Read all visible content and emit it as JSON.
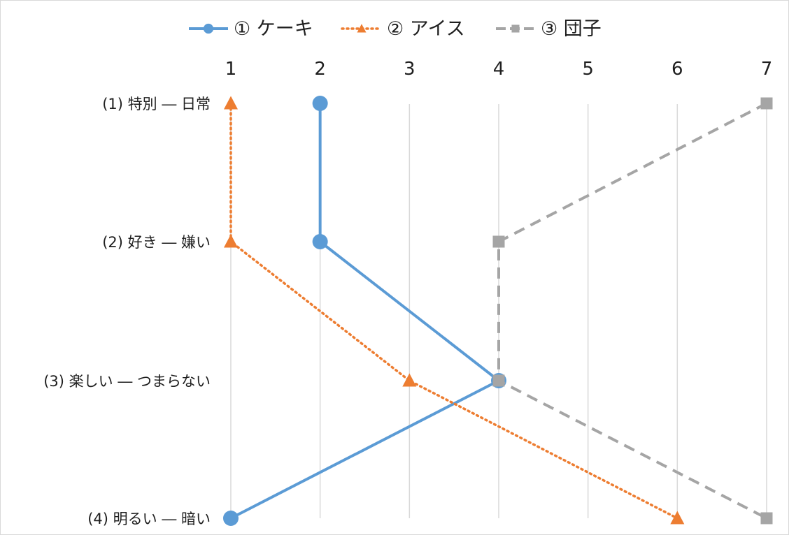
{
  "chart_data": {
    "type": "line",
    "title": "",
    "xlabel": "",
    "ylabel": "",
    "x_ticks": [
      1,
      2,
      3,
      4,
      5,
      6,
      7
    ],
    "xlim": [
      1,
      7
    ],
    "x_axis_position": "top",
    "grid": "vertical",
    "legend": "top",
    "categories": [
      "(1) 特別 ― 日常",
      "(2) 好き ― 嫌い",
      "(3) 楽しい ― つまらない",
      "(4) 明るい ― 暗い"
    ],
    "series": [
      {
        "name": "① ケーキ",
        "values": [
          2,
          2,
          4,
          1
        ],
        "color": "#5b9bd5",
        "line": "solid",
        "marker": "circle"
      },
      {
        "name": "② アイス",
        "values": [
          1,
          1,
          3,
          6
        ],
        "color": "#ed7d31",
        "line": "dotted",
        "marker": "triangle"
      },
      {
        "name": "③ 団子",
        "values": [
          7,
          4,
          4,
          7
        ],
        "color": "#a5a5a5",
        "line": "dashed",
        "marker": "square"
      }
    ],
    "gridline_color": "#d9d9d9"
  }
}
